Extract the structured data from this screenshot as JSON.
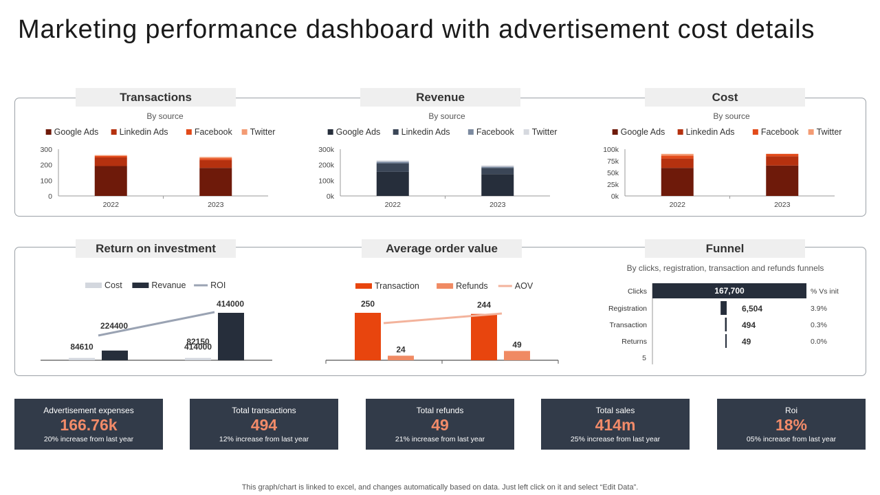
{
  "title": "Marketing performance dashboard with advertisement cost details",
  "sections": {
    "transactions": "Transactions",
    "revenue": "Revenue",
    "cost": "Cost",
    "roi": "Return on investment",
    "aov": "Average order value",
    "funnel": "Funnel"
  },
  "colors": {
    "google_red": "#6e1a0a",
    "linkedin_red": "#b5310f",
    "facebook_red": "#e24a1a",
    "twitter_red": "#f39b74",
    "google_navy": "#262e3b",
    "linkedin_navy": "#3b4657",
    "facebook_navy": "#7c8aa0",
    "twitter_navy": "#d6d9df",
    "orange": "#e8450e",
    "light_orange": "#f08a63",
    "kpi_bg": "#323b49",
    "kpi_value": "#f28b69"
  },
  "chart_data": [
    {
      "id": "transactions",
      "type": "bar",
      "stacked": true,
      "subtitle": "By source",
      "categories": [
        "2022",
        "2023"
      ],
      "series": [
        {
          "name": "Google Ads",
          "values": [
            192,
            180
          ]
        },
        {
          "name": "Linkedin Ads",
          "values": [
            55,
            50
          ]
        },
        {
          "name": "Facebook",
          "values": [
            10,
            12
          ]
        },
        {
          "name": "Twitter",
          "values": [
            5,
            8
          ]
        }
      ],
      "ylim": [
        0,
        300
      ],
      "yticks": [
        "300",
        "200",
        "100",
        "0"
      ],
      "legend": "top"
    },
    {
      "id": "revenue",
      "type": "bar",
      "stacked": true,
      "subtitle": "By source",
      "categories": [
        "2022",
        "2023"
      ],
      "series": [
        {
          "name": "Google Ads",
          "values": [
            155000,
            140000
          ]
        },
        {
          "name": "Linkedin Ads",
          "values": [
            55000,
            40000
          ]
        },
        {
          "name": "Facebook",
          "values": [
            10000,
            8000
          ]
        },
        {
          "name": "Twitter",
          "values": [
            8000,
            8000
          ]
        }
      ],
      "ylim": [
        0,
        300000
      ],
      "yticks": [
        "300k",
        "200k",
        "100k",
        "0k"
      ],
      "legend": "top"
    },
    {
      "id": "cost",
      "type": "bar",
      "stacked": true,
      "subtitle": "By source",
      "categories": [
        "2022",
        "2023"
      ],
      "series": [
        {
          "name": "Google Ads",
          "values": [
            60000,
            65000
          ]
        },
        {
          "name": "Linkedin Ads",
          "values": [
            20000,
            20000
          ]
        },
        {
          "name": "Facebook",
          "values": [
            6000,
            5000
          ]
        },
        {
          "name": "Twitter",
          "values": [
            4000,
            0
          ]
        }
      ],
      "ylim": [
        0,
        100000
      ],
      "yticks": [
        "100k",
        "75k",
        "50k",
        "25k",
        "0k"
      ],
      "legend": "top"
    },
    {
      "id": "roi",
      "type": "bar",
      "series": [
        {
          "name": "Cost",
          "values": [
            20000,
            20000
          ],
          "labels": [
            "",
            ""
          ]
        },
        {
          "name": "Revanue",
          "values": [
            84610,
            414000
          ],
          "labels": [
            "84610",
            "414000"
          ]
        },
        {
          "name": "ROI",
          "type": "line",
          "values": [
            224400,
            82150
          ],
          "labels": [
            "224400",
            "82150"
          ]
        }
      ],
      "legend": "top"
    },
    {
      "id": "aov",
      "type": "bar",
      "series": [
        {
          "name": "Transaction",
          "values": [
            250,
            244
          ],
          "labels": [
            "250",
            "244"
          ]
        },
        {
          "name": "Refunds",
          "values": [
            24,
            49
          ],
          "labels": [
            "24",
            "49"
          ]
        },
        {
          "name": "AOV",
          "type": "line",
          "values": [
            196,
            244
          ]
        }
      ],
      "legend": "top"
    },
    {
      "id": "funnel",
      "type": "bar",
      "orientation": "horizontal",
      "subtitle": "By clicks, registration, transaction and refunds funnels",
      "categories": [
        "Clicks",
        "Registration",
        "Transaction",
        "Returns"
      ],
      "values": [
        167700,
        6504,
        494,
        49
      ],
      "value_labels": [
        "167,700",
        "6,504",
        "494",
        "49"
      ],
      "pct_header": "% Vs init",
      "pct": [
        "3.9%",
        "0.3%",
        "0.0%"
      ],
      "axis_label": "5"
    }
  ],
  "kpis": [
    {
      "label": "Advertisement expenses",
      "value": "166.76k",
      "sub": "20% increase from last year"
    },
    {
      "label": "Total transactions",
      "value": "494",
      "sub": "12% increase from last year"
    },
    {
      "label": "Total refunds",
      "value": "49",
      "sub": "21% increase from last year"
    },
    {
      "label": "Total sales",
      "value": "414m",
      "sub": "25% increase from last year"
    },
    {
      "label": "Roi",
      "value": "18%",
      "sub": "05% increase from last year"
    }
  ],
  "footer": "This graph/chart is linked to excel, and changes automatically based on data. Just left click on it and select “Edit Data”."
}
